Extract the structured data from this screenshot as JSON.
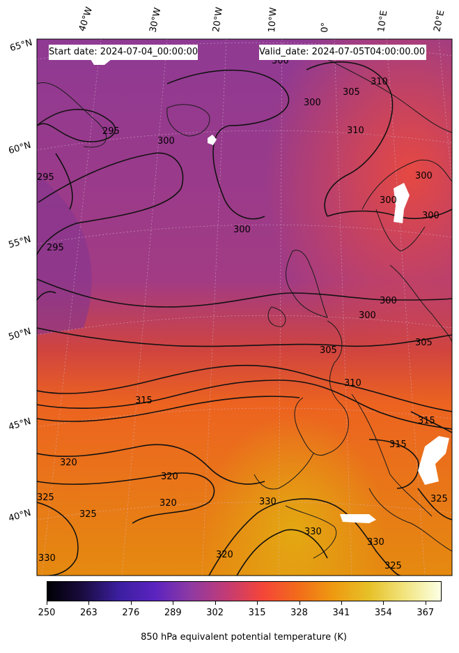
{
  "header": {
    "start_label": "Start date: 2024-07-04_00:00:00",
    "valid_label": "Valid_date: 2024-07-05T04:00:00.00"
  },
  "axes": {
    "longitudes": [
      "40°W",
      "30°W",
      "20°W",
      "10°W",
      "0°",
      "10°E",
      "20°E"
    ],
    "latitudes": [
      "65°N",
      "60°N",
      "55°N",
      "50°N",
      "45°N",
      "40°N"
    ]
  },
  "contours": {
    "labels": [
      "295",
      "295",
      "295",
      "300",
      "300",
      "300",
      "300",
      "300",
      "300",
      "300",
      "300",
      "305",
      "305",
      "305",
      "310",
      "310",
      "310",
      "315",
      "315",
      "315",
      "320",
      "320",
      "320",
      "320",
      "325",
      "325",
      "325",
      "325",
      "330",
      "330",
      "330",
      "330",
      "300"
    ]
  },
  "colorbar": {
    "title": "850 hPa equivalent potential temperature (K)",
    "ticks": [
      "250",
      "263",
      "276",
      "289",
      "302",
      "315",
      "328",
      "341",
      "354",
      "367"
    ],
    "range": [
      250,
      372
    ],
    "colors": [
      "#000004",
      "#1b0c41",
      "#3b1fa0",
      "#5b23c0",
      "#8e3aa3",
      "#c23b75",
      "#f4453a",
      "#f26b1a",
      "#ee9a10",
      "#e6c128",
      "#f2e580",
      "#fcffe4"
    ]
  }
}
